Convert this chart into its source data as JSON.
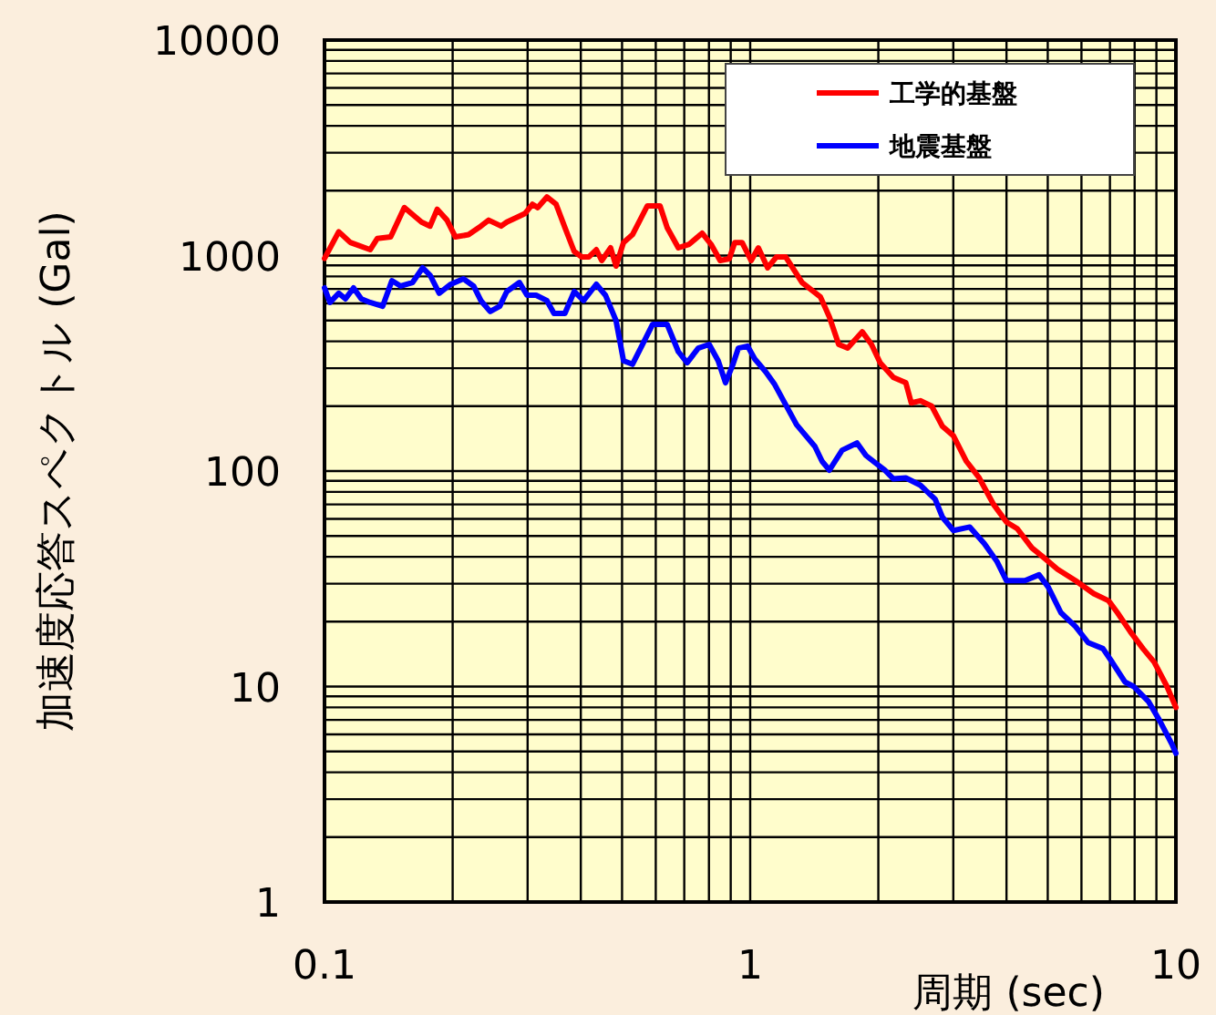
{
  "chart_data": {
    "type": "line",
    "xlabel": "周期 (sec)",
    "ylabel": "加速度応答スペクトル (Gal)",
    "log": "xy",
    "grid": true,
    "legend": "top right",
    "line_style": "solid",
    "xlim": [
      0.1,
      10
    ],
    "ylim": [
      1,
      10000
    ],
    "xticks": [
      0.1,
      1,
      10
    ],
    "yticks": [
      1,
      10,
      100,
      1000,
      10000
    ],
    "series": [
      {
        "name": "工学的基盤",
        "color": "#ff0000",
        "x": [
          0.1,
          0.108,
          0.115,
          0.128,
          0.133,
          0.143,
          0.154,
          0.169,
          0.177,
          0.184,
          0.194,
          0.203,
          0.218,
          0.233,
          0.243,
          0.26,
          0.268,
          0.284,
          0.296,
          0.308,
          0.317,
          0.333,
          0.35,
          0.367,
          0.386,
          0.402,
          0.418,
          0.435,
          0.448,
          0.47,
          0.484,
          0.504,
          0.529,
          0.545,
          0.573,
          0.614,
          0.638,
          0.678,
          0.719,
          0.771,
          0.809,
          0.85,
          0.893,
          0.92,
          0.957,
          1.005,
          1.045,
          1.099,
          1.153,
          1.211,
          1.324,
          1.462,
          1.535,
          1.614,
          1.694,
          1.833,
          1.927,
          2.02,
          2.17,
          2.32,
          2.39,
          2.51,
          2.67,
          2.83,
          3.0,
          3.22,
          3.45,
          3.73,
          4.0,
          4.24,
          4.59,
          4.87,
          5.27,
          5.81,
          6.41,
          6.95,
          7.29,
          7.81,
          8.37,
          8.89,
          9.53,
          10
        ],
        "values": [
          970,
          1290,
          1150,
          1065,
          1200,
          1220,
          1670,
          1430,
          1370,
          1640,
          1460,
          1220,
          1250,
          1370,
          1460,
          1370,
          1430,
          1510,
          1570,
          1730,
          1670,
          1870,
          1730,
          1350,
          1045,
          986,
          986,
          1065,
          948,
          1086,
          894,
          1150,
          1250,
          1400,
          1700,
          1700,
          1350,
          1086,
          1129,
          1270,
          1129,
          948,
          966,
          1150,
          1150,
          948,
          1086,
          877,
          986,
          986,
          750,
          643,
          518,
          387,
          372,
          443,
          387,
          318,
          272,
          257,
          207,
          212,
          200,
          161,
          146,
          111,
          93,
          70,
          58,
          54,
          44,
          40,
          35,
          31,
          27,
          25,
          22,
          18,
          15,
          13,
          10,
          8
        ]
      },
      {
        "name": "地震基盤",
        "color": "#0000ff",
        "x": [
          0.1,
          0.103,
          0.108,
          0.112,
          0.117,
          0.122,
          0.128,
          0.137,
          0.144,
          0.151,
          0.161,
          0.17,
          0.177,
          0.186,
          0.198,
          0.212,
          0.224,
          0.233,
          0.245,
          0.258,
          0.268,
          0.287,
          0.299,
          0.314,
          0.333,
          0.346,
          0.367,
          0.386,
          0.406,
          0.435,
          0.457,
          0.484,
          0.504,
          0.529,
          0.556,
          0.59,
          0.638,
          0.678,
          0.711,
          0.755,
          0.801,
          0.841,
          0.875,
          0.911,
          0.938,
          0.986,
          1.025,
          1.087,
          1.142,
          1.285,
          1.419,
          1.475,
          1.535,
          1.644,
          1.782,
          1.871,
          2.07,
          2.17,
          2.32,
          2.51,
          2.72,
          2.83,
          3.0,
          3.28,
          3.55,
          3.8,
          4.0,
          4.42,
          4.77,
          5.01,
          5.37,
          5.81,
          6.22,
          6.74,
          7.08,
          7.59,
          7.96,
          8.63,
          9.14,
          9.79,
          10
        ],
        "values": [
          708,
          606,
          668,
          630,
          708,
          630,
          606,
          582,
          765,
          722,
          750,
          877,
          811,
          668,
          736,
          780,
          722,
          618,
          550,
          582,
          681,
          750,
          655,
          655,
          618,
          539,
          539,
          681,
          618,
          736,
          655,
          499,
          325,
          313,
          380,
          480,
          480,
          358,
          318,
          372,
          387,
          325,
          257,
          313,
          372,
          380,
          331,
          289,
          252,
          164,
          130,
          111,
          101,
          125,
          135,
          118,
          101,
          92,
          93,
          86,
          74,
          61,
          53,
          55,
          46,
          38,
          31,
          31,
          33,
          29,
          22,
          19,
          16,
          15,
          13,
          10.5,
          10,
          8.5,
          7,
          5.4,
          4.9
        ]
      }
    ]
  }
}
